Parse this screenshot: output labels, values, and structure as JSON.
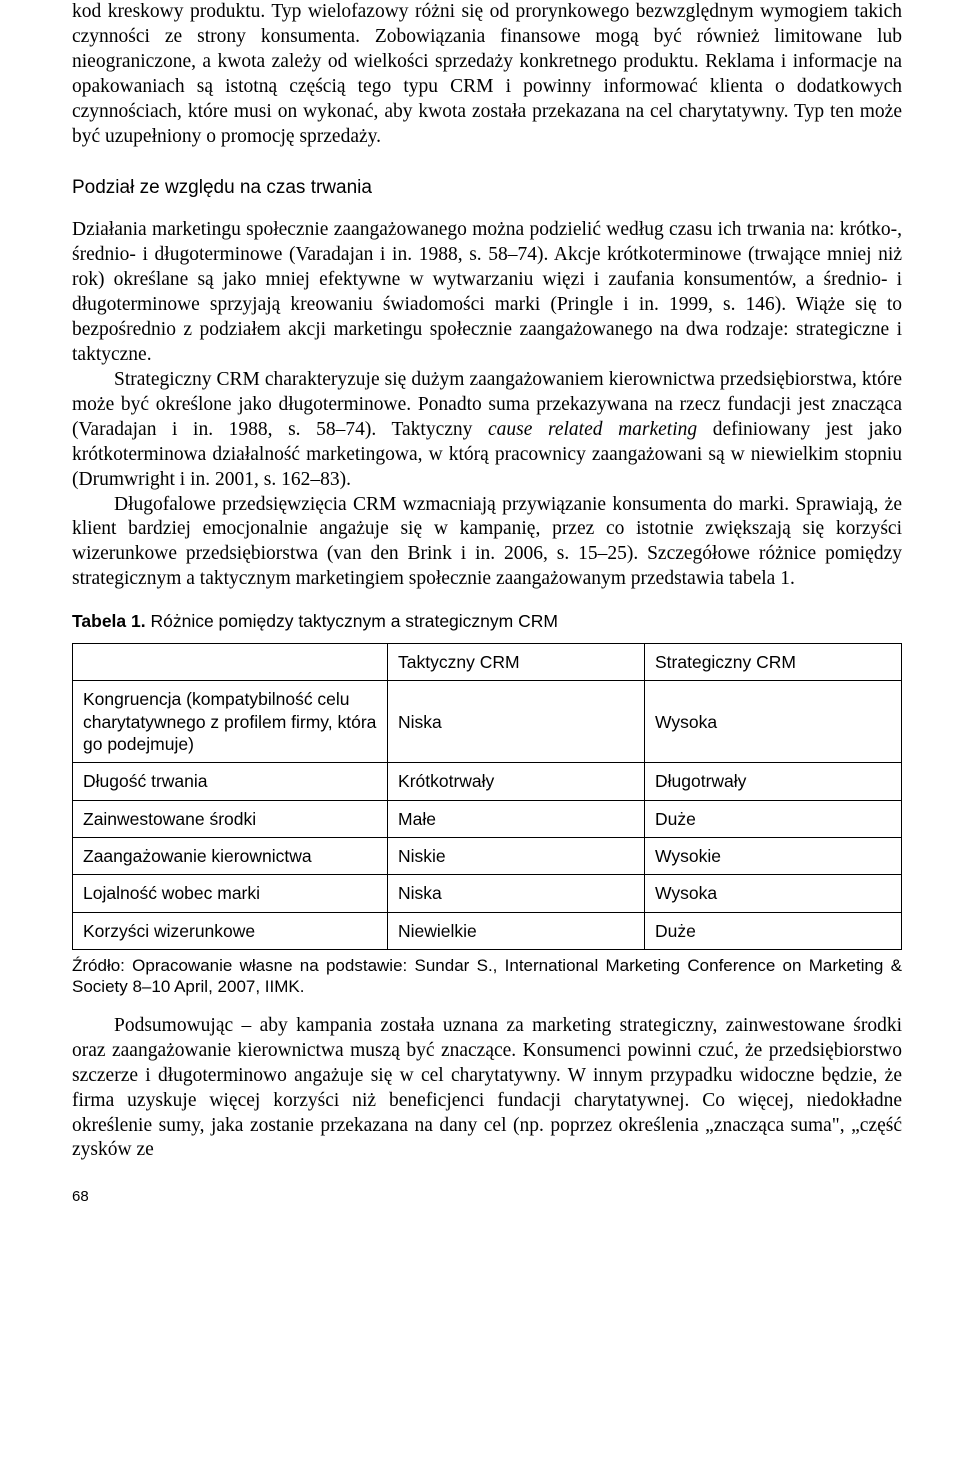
{
  "para1": "kod kreskowy produktu. Typ wielofazowy różni się od prorynkowego bezwzględnym wymogiem takich czynności ze strony konsumenta. Zobowiązania finansowe mogą być również limitowane lub nieograniczone, a kwota zależy od wielkości sprzedaży konkretnego produktu. Reklama i informacje na opakowaniach są istotną częścią tego typu CRM i powinny informować klienta o dodatkowych czynnościach, które musi on wykonać, aby kwota została przekazana na cel charytatywny. Typ ten może być uzupełniony o promocję sprzedaży.",
  "heading": "Podział ze względu na czas trwania",
  "para2a": "Działania marketingu społecznie zaangażowanego można podzielić według czasu ich trwania na: krótko-, średnio- i długoterminowe (Varadajan i in. 1988, s. 58–74). Akcje krótkoterminowe (trwające mniej niż rok) określane są jako mniej efektywne w wytwarzaniu więzi i zaufania konsumentów, a średnio- i długoterminowe sprzyjają kreowaniu świadomości marki (Pringle i in. 1999, s. 146). Wiąże się to bezpośrednio z podziałem akcji marketingu społecznie zaangażowanego na dwa rodzaje: strategiczne i taktyczne.",
  "para2b_pre": "Strategiczny CRM charakteryzuje się dużym zaangażowaniem kierownictwa przedsiębiorstwa, które może być określone jako długoterminowe. Ponadto suma przekazywana na rzecz fundacji jest znacząca (Varadajan i in. 1988, s. 58–74). Taktyczny ",
  "para2b_em": "cause related marketing",
  "para2b_post": " definiowany jest jako krótkoterminowa działalność marketingowa, w którą pracownicy zaangażowani są w niewielkim stopniu (Drumwright i in. 2001, s. 162–83).",
  "para2c": "Długofalowe przedsięwzięcia CRM wzmacniają przywiązanie konsumenta do marki. Sprawiają, że klient bardziej emocjonalnie angażuje się w kampanię, przez co istotnie zwiększają się korzyści wizerunkowe przedsiębiorstwa (van den Brink i in. 2006, s. 15–25). Szczegółowe różnice pomiędzy strategicznym a taktycznym marketingiem społecznie zaangażowanym przedstawia tabela 1.",
  "table_caption_bold": "Tabela 1.",
  "table_caption_rest": " Różnice pomiędzy taktycznym a strategicznym CRM",
  "table": {
    "col_headers": [
      "",
      "Taktyczny CRM",
      "Strategiczny CRM"
    ],
    "rows": [
      [
        "Kongruencja (kompatybilność celu charytatywnego z profilem firmy, która go podejmuje)",
        "Niska",
        "Wysoka"
      ],
      [
        "Długość trwania",
        "Krótkotrwały",
        "Długotrwały"
      ],
      [
        "Zainwestowane środki",
        "Małe",
        "Duże"
      ],
      [
        "Zaangażowanie kierownictwa",
        "Niskie",
        "Wysokie"
      ],
      [
        "Lojalność wobec marki",
        "Niska",
        "Wysoka"
      ],
      [
        "Korzyści wizerunkowe",
        "Niewielkie",
        "Duże"
      ]
    ]
  },
  "source": "Źródło:  Opracowanie własne na podstawie: Sundar S., International Marketing Conference on Marketing & Society 8–10 April, 2007, IIMK.",
  "para3": "Podsumowując – aby kampania została uznana za marketing strategiczny, zainwestowane środki oraz zaangażowanie kierownictwa muszą być znaczące. Konsumenci powinni czuć, że przedsiębiorstwo szczerze i długoterminowo angażuje się w cel charytatywny. W innym przypadku widoczne będzie, że firma uzyskuje więcej korzyści niż beneficjenci fundacji charytatywnej. Co więcej, niedokładne określenie sumy, jaka zostanie przekazana na dany cel (np. poprzez określenia „znacząca suma\", „część zysków ze",
  "page_number": "68"
}
